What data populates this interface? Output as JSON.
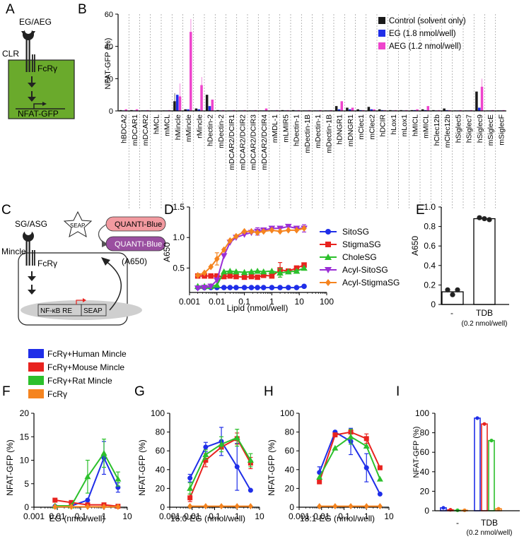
{
  "panel_labels": {
    "a": "A",
    "b": "B",
    "c": "C",
    "d": "D",
    "e": "E",
    "f": "F",
    "g": "G",
    "h": "H",
    "i": "I"
  },
  "schematic_a": {
    "ligand": "EG/AEG",
    "receptor": "CLR",
    "adaptor": "FcRγ",
    "reporter": "NFAT-GFP",
    "colors": {
      "cell": "#6aaa2c",
      "receptor": "#222222"
    }
  },
  "schematic_c": {
    "ligand": "SG/ASG",
    "receptor": "Mincle",
    "adaptor": "FcRγ",
    "secreted": "SEAP",
    "substrate": "QUANTI-Blue",
    "product": "QUANTI-Blue",
    "readout": "(A650)",
    "reporter_left": "NF-κB RE",
    "reporter_right": "SEAP",
    "colors": {
      "substrate": "#f29aa0",
      "product": "#9a4fa0",
      "nucleus": "#cfcfcf"
    }
  },
  "shared_legend_fi": {
    "entries": [
      {
        "name": "FcRγ+Human Mincle",
        "color": "#1f2ee8"
      },
      {
        "name": "FcRγ+Mouse Mincle",
        "color": "#e8231f"
      },
      {
        "name": "FcRγ+Rat Mincle",
        "color": "#2cc02c"
      },
      {
        "name": "FcRγ",
        "color": "#f5841f"
      }
    ]
  },
  "chart_data": [
    {
      "id": "B",
      "type": "bar",
      "title": "",
      "ylabel": "NFAT-GFP (%)",
      "xlabel": "",
      "ylim": [
        0,
        60
      ],
      "yticks": [
        0,
        20,
        40,
        60
      ],
      "legend": {
        "placement": "top-right"
      },
      "categories": [
        "hBDCA2",
        "mDCAR1",
        "mDCAR2",
        "hMCL",
        "mMCL",
        "hMincle",
        "mMincle",
        "rMincle",
        "hDectin-2",
        "mDectin-2",
        "mDCAR2/DCIR1",
        "mDCAR2/DCIR2",
        "mDCAR2/DCIR3",
        "mDCAR2/DCIR4",
        "mMDL-1",
        "mLMIR5",
        "hDectin-1",
        "mDectin-1B",
        "mDectin-1",
        "mDectin-1B",
        "hDNGR1",
        "mDNGR1",
        "mClec1",
        "mClec2",
        "hDCIR",
        "hLox1",
        "mLox1",
        "hMICL",
        "mMICL",
        "hClec12b",
        "mClec12b",
        "hSiglec5",
        "hSiglec7",
        "hSiglec9",
        "mSiglecE",
        "mSiglecF"
      ],
      "series": [
        {
          "name": "Control (solvent only)",
          "color": "#1a1a1a",
          "values": [
            0.5,
            0.5,
            0.3,
            0.2,
            0.3,
            6,
            1,
            1.5,
            10,
            0.5,
            0.3,
            0.3,
            0.3,
            0.3,
            0.3,
            0.5,
            0.5,
            0.3,
            0.3,
            0.3,
            3,
            2,
            1,
            2.5,
            1,
            0.5,
            0.5,
            0.5,
            1,
            0.5,
            1.5,
            0.3,
            0.3,
            12,
            0.3,
            0.3
          ]
        },
        {
          "name": "EG (1.8 nmol/well)",
          "color": "#1f2ee8",
          "values": [
            0.3,
            0.3,
            0.3,
            0.2,
            0.3,
            10,
            1,
            1,
            3,
            0.3,
            0.3,
            0.3,
            0.3,
            0.3,
            0.3,
            0.3,
            0.3,
            0.3,
            0.3,
            0.3,
            1,
            1,
            0.5,
            1,
            0.5,
            0.3,
            0.3,
            0.5,
            0.5,
            0.3,
            0.5,
            0.3,
            0.3,
            2,
            0.3,
            0.3
          ]
        },
        {
          "name": "AEG (1.2 nmol/well)",
          "color": "#ee44cc",
          "values": [
            1,
            1,
            0.5,
            0.3,
            0.5,
            9,
            49,
            16,
            7,
            0.5,
            0.5,
            0.5,
            0.5,
            1.5,
            0.5,
            0.5,
            0.5,
            0.5,
            0.5,
            0.5,
            6,
            2,
            0.5,
            1,
            0.5,
            0.5,
            0.5,
            1,
            3,
            0.5,
            0.5,
            0.5,
            0.5,
            15,
            0.5,
            0.5
          ]
        }
      ]
    },
    {
      "id": "D",
      "type": "line",
      "xscale": "log",
      "xlabel": "Lipid (nmol/well)",
      "ylabel": "A650",
      "xlim": [
        0.001,
        100
      ],
      "ylim": [
        0.1,
        1.5
      ],
      "xticks": [
        "0.001",
        "0.01",
        "0.1",
        "1",
        "10",
        "100"
      ],
      "yticks": [
        "0.5",
        "1.0",
        "1.5"
      ],
      "x": [
        0.002,
        0.0035,
        0.006,
        0.01,
        0.018,
        0.03,
        0.05,
        0.1,
        0.18,
        0.3,
        0.5,
        1,
        2,
        4,
        8,
        15
      ],
      "series": [
        {
          "name": "SitoSG",
          "color": "#1f2ee8",
          "marker": "circle",
          "values": [
            0.18,
            0.18,
            0.18,
            0.18,
            0.18,
            0.18,
            0.18,
            0.18,
            0.18,
            0.18,
            0.18,
            0.18,
            0.18,
            0.18,
            0.18,
            0.2
          ]
        },
        {
          "name": "StigmaSG",
          "color": "#e8231f",
          "marker": "square",
          "values": [
            0.37,
            0.37,
            0.37,
            0.37,
            0.36,
            0.37,
            0.36,
            0.35,
            0.36,
            0.35,
            0.38,
            0.37,
            0.47,
            0.45,
            0.5,
            0.55
          ]
        },
        {
          "name": "CholeSG",
          "color": "#2cc02c",
          "marker": "triangle",
          "values": [
            0.2,
            0.2,
            0.2,
            0.22,
            0.44,
            0.45,
            0.44,
            0.43,
            0.44,
            0.45,
            0.44,
            0.45,
            0.42,
            0.44,
            0.45,
            0.5
          ]
        },
        {
          "name": "Acyl-SitoSG",
          "color": "#9b2fd6",
          "marker": "triangle-down",
          "values": [
            0.17,
            0.18,
            0.2,
            0.3,
            0.7,
            0.92,
            1.0,
            1.05,
            1.08,
            1.1,
            1.12,
            1.15,
            1.15,
            1.18,
            1.15,
            1.15
          ]
        },
        {
          "name": "Acyl-StigmaSG",
          "color": "#f5841f",
          "marker": "diamond",
          "values": [
            0.38,
            0.42,
            0.52,
            0.65,
            0.8,
            0.95,
            1.02,
            1.1,
            1.1,
            1.08,
            1.1,
            1.12,
            1.1,
            1.12,
            1.12,
            1.15
          ]
        }
      ]
    },
    {
      "id": "E",
      "type": "bar",
      "ylabel": "A650",
      "ylim": [
        0,
        1.0
      ],
      "yticks": [
        "0",
        "0.2",
        "0.4",
        "0.6",
        "0.8",
        "1.0"
      ],
      "categories": [
        "-",
        "TDB"
      ],
      "category_note": "(0.2 nmol/well)",
      "values": [
        0.13,
        0.88
      ]
    },
    {
      "id": "F",
      "type": "line",
      "xscale": "log",
      "xlabel": "EG (nmol/well)",
      "ylabel": "NFAT-GFP (%)",
      "xlim": [
        0.001,
        10
      ],
      "ylim": [
        0,
        20
      ],
      "xticks": [
        "0.001",
        "0.01",
        "0.1",
        "1",
        "10"
      ],
      "yticks": [
        "0",
        "5",
        "10",
        "15",
        "20"
      ],
      "x": [
        0.008,
        0.04,
        0.2,
        1,
        4
      ],
      "series": [
        {
          "name": "FcRγ+Human Mincle",
          "color": "#1f2ee8",
          "values": [
            0.2,
            0.3,
            1.5,
            10.5,
            4.2
          ]
        },
        {
          "name": "FcRγ+Mouse Mincle",
          "color": "#e8231f",
          "values": [
            1.5,
            1.0,
            0.5,
            0.5,
            0.2
          ]
        },
        {
          "name": "FcRγ+Rat Mincle",
          "color": "#2cc02c",
          "values": [
            0.3,
            0.3,
            6.5,
            11.5,
            6.0
          ]
        },
        {
          "name": "FcRγ",
          "color": "#f5841f",
          "values": [
            0.1,
            0.1,
            0.1,
            0.1,
            0.1
          ]
        }
      ]
    },
    {
      "id": "G",
      "type": "line",
      "xscale": "log",
      "xlabel": "16:0-EG (nmol/well)",
      "ylabel": "NFAT-GFP (%)",
      "xlim": [
        0.001,
        10
      ],
      "ylim": [
        0,
        100
      ],
      "xticks": [
        "0.001",
        "0.01",
        "0.1",
        "1",
        "10"
      ],
      "yticks": [
        "0",
        "20",
        "40",
        "60",
        "80",
        "100"
      ],
      "x": [
        0.008,
        0.04,
        0.2,
        1,
        4
      ],
      "series": [
        {
          "name": "FcRγ+Human Mincle",
          "color": "#1f2ee8",
          "values": [
            31,
            64,
            70,
            43,
            18
          ]
        },
        {
          "name": "FcRγ+Mouse Mincle",
          "color": "#e8231f",
          "values": [
            10,
            50,
            64,
            73,
            47
          ]
        },
        {
          "name": "FcRγ+Rat Mincle",
          "color": "#2cc02c",
          "values": [
            20,
            56,
            67,
            74,
            50
          ]
        },
        {
          "name": "FcRγ",
          "color": "#f5841f",
          "values": [
            1,
            1,
            1,
            1,
            1
          ]
        }
      ]
    },
    {
      "id": "H",
      "type": "line",
      "xscale": "log",
      "xlabel": "18:1-EG (nmol/well)",
      "ylabel": "NFAT-GFP (%)",
      "xlim": [
        0.001,
        10
      ],
      "ylim": [
        0,
        100
      ],
      "xticks": [
        "0.001",
        "0.01",
        "0.1",
        "1",
        "10"
      ],
      "yticks": [
        "0",
        "20",
        "40",
        "60",
        "80",
        "100"
      ],
      "x": [
        0.008,
        0.04,
        0.2,
        1,
        4
      ],
      "series": [
        {
          "name": "FcRγ+Human Mincle",
          "color": "#1f2ee8",
          "values": [
            37,
            80,
            70,
            42,
            14
          ]
        },
        {
          "name": "FcRγ+Mouse Mincle",
          "color": "#e8231f",
          "values": [
            27,
            77,
            80,
            73,
            42
          ]
        },
        {
          "name": "FcRγ+Rat Mincle",
          "color": "#2cc02c",
          "values": [
            32,
            63,
            75,
            65,
            30
          ]
        },
        {
          "name": "FcRγ",
          "color": "#f5841f",
          "values": [
            1,
            1,
            1,
            1,
            1
          ]
        }
      ]
    },
    {
      "id": "I",
      "type": "bar",
      "ylabel": "NFAT-GFP (%)",
      "ylim": [
        0,
        100
      ],
      "yticks": [
        "0",
        "20",
        "40",
        "60",
        "80",
        "100"
      ],
      "categories": [
        "-",
        "TDB"
      ],
      "category_note": "(0.2 nmol/well)",
      "series": [
        {
          "name": "FcRγ+Human Mincle",
          "color": "#1f2ee8",
          "values": [
            3,
            95
          ]
        },
        {
          "name": "FcRγ+Mouse Mincle",
          "color": "#e8231f",
          "values": [
            1,
            89
          ]
        },
        {
          "name": "FcRγ+Rat Mincle",
          "color": "#2cc02c",
          "values": [
            0.5,
            72
          ]
        },
        {
          "name": "FcRγ",
          "color": "#f5841f",
          "values": [
            0.5,
            2
          ]
        }
      ]
    }
  ]
}
